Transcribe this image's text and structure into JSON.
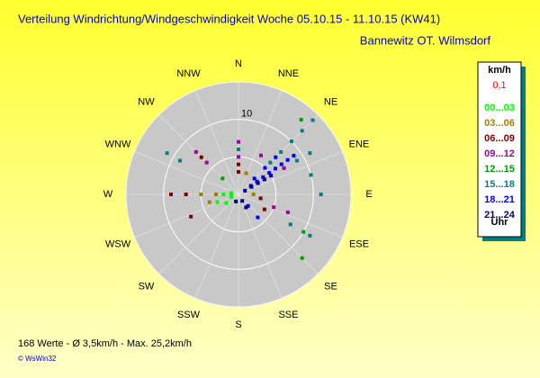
{
  "chart_data": {
    "type": "windrose",
    "title": "Verteilung Windrichtung/Windgeschwindigkeit  Woche 05.10.15 - 11.10.15 (KW41)",
    "subtitle": "Bannewitz OT. Wilmsdorf",
    "direction_labels": [
      "N",
      "NNE",
      "NE",
      "ENE",
      "E",
      "ESE",
      "SE",
      "SSE",
      "S",
      "SSW",
      "SW",
      "WSW",
      "W",
      "WNW",
      "NW",
      "NNW"
    ],
    "rlim": [
      0,
      15
    ],
    "rings": [
      5,
      10,
      15
    ],
    "rticks": [
      10
    ],
    "legend_header": "km/h",
    "calm_label": "0,1",
    "legend_footer": "Uhr",
    "footer": "168 Werte   -   Ø 3,5km/h  -  Max. 25,2km/h",
    "credit": "© WsWin32",
    "series": [
      {
        "name": "00...03",
        "color": "#00ff00",
        "x": [
          270,
          270,
          250,
          250,
          235,
          280
        ],
        "values": [
          1,
          2,
          1,
          3,
          2,
          1
        ]
      },
      {
        "name": "03...06",
        "color": "#a08000",
        "x": [
          255,
          270,
          270,
          90,
          20
        ],
        "values": [
          4,
          3,
          5,
          2,
          3
        ]
      },
      {
        "name": "06...09",
        "color": "#800000",
        "x": [
          270,
          270,
          245,
          0,
          0,
          315,
          100,
          120
        ],
        "values": [
          7,
          9,
          7,
          3,
          4,
          7,
          3,
          4
        ]
      },
      {
        "name": "09...12",
        "color": "#a000a0",
        "x": [
          315,
          315,
          30,
          110,
          110,
          0,
          0,
          60
        ],
        "values": [
          8,
          6,
          6,
          5,
          7,
          5,
          7,
          7
        ]
      },
      {
        "name": "12...15",
        "color": "#00a000",
        "x": [
          40,
          135,
          120,
          315
        ],
        "values": [
          13,
          12,
          10,
          3
        ]
      },
      {
        "name": "15...18",
        "color": "#008080",
        "x": [
          45,
          45,
          45,
          45,
          45,
          60,
          60,
          75,
          300,
          300,
          90,
          120,
          120,
          0
        ],
        "values": [
          6,
          8,
          10,
          12,
          14,
          9,
          11,
          10,
          9,
          11,
          11,
          8,
          11,
          6
        ]
      },
      {
        "name": "18...21",
        "color": "#0000ff",
        "x": [
          55,
          55,
          55,
          55,
          55,
          55,
          55,
          55,
          45,
          45,
          45,
          140,
          140
        ],
        "values": [
          2,
          3,
          4,
          5,
          6,
          7,
          8,
          9,
          3,
          5,
          7,
          2,
          4
        ]
      },
      {
        "name": "21...24",
        "color": "#000080",
        "x": [
          60,
          60,
          60,
          60,
          60,
          200,
          150,
          150
        ],
        "values": [
          1,
          2,
          3,
          4,
          5,
          1,
          1,
          2
        ]
      }
    ]
  }
}
